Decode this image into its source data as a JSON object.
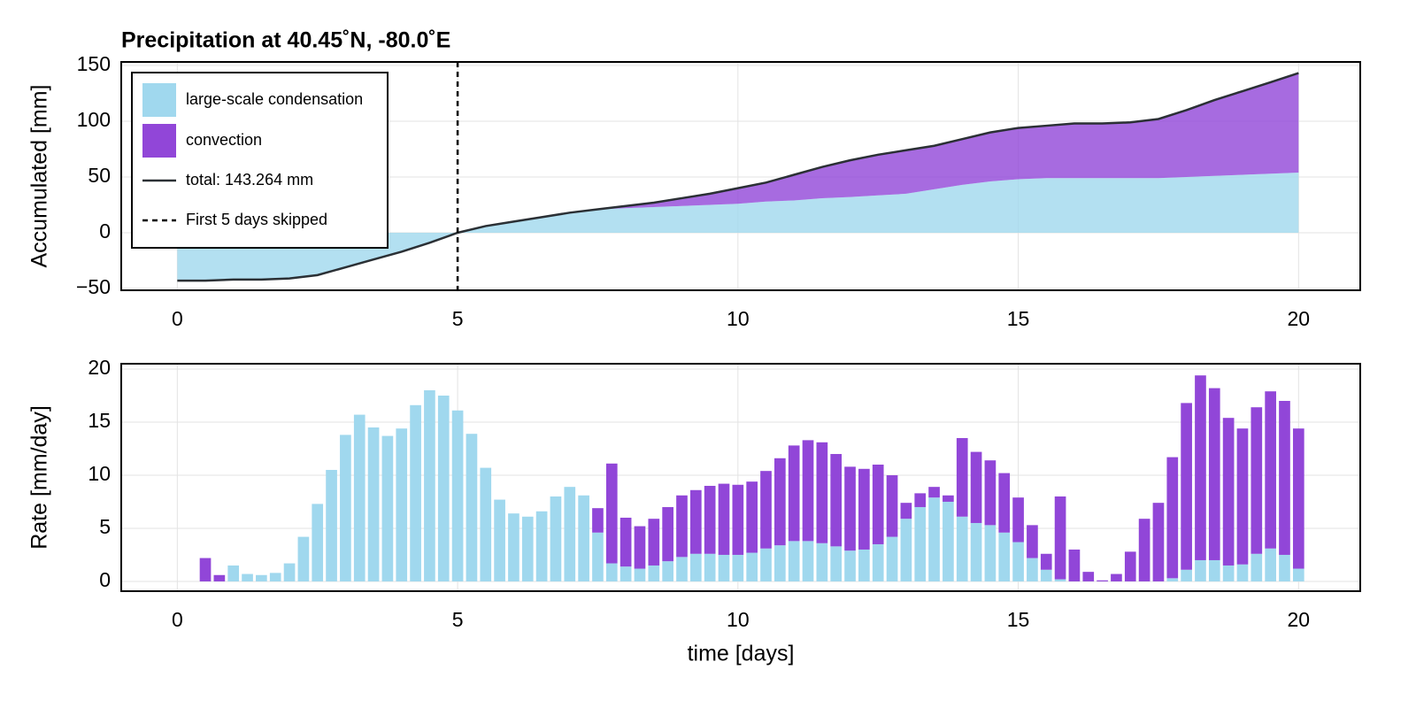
{
  "chart_data": [
    {
      "type": "area",
      "title": "Precipitation at 40.45˚N, -80.0˚E",
      "ylabel": "Accumulated [mm]",
      "x": [
        0,
        0.5,
        1,
        1.5,
        2,
        2.5,
        3,
        3.5,
        4,
        4.5,
        5,
        5.5,
        6,
        6.5,
        7,
        7.5,
        8,
        8.5,
        9,
        9.5,
        10,
        10.5,
        11,
        11.5,
        12,
        12.5,
        13,
        13.5,
        14,
        14.5,
        15,
        15.5,
        16,
        16.5,
        17,
        17.5,
        18,
        18.5,
        19,
        19.5,
        20
      ],
      "series": [
        {
          "name": "large-scale condensation",
          "color": "#a0d8ee",
          "values": [
            -43,
            -43,
            -42,
            -42,
            -41,
            -38,
            -31,
            -24,
            -17,
            -9,
            0,
            6,
            10,
            14,
            18,
            21,
            22,
            23,
            24,
            25,
            26,
            28,
            29,
            31,
            32,
            33.5,
            35,
            39,
            43,
            46,
            48,
            49,
            49,
            49,
            49,
            49,
            50,
            51,
            52,
            53,
            54
          ]
        },
        {
          "name": "convection",
          "color": "#9146d8",
          "values": [
            0,
            0,
            0,
            0,
            0,
            0,
            0,
            0,
            0,
            0,
            0,
            0,
            0,
            0,
            0,
            0,
            2,
            4,
            7,
            10,
            14,
            17,
            23,
            28,
            33,
            36.5,
            39,
            39,
            41,
            44,
            46,
            47,
            49,
            49,
            50,
            53,
            60,
            68,
            75,
            82,
            89.3
          ]
        },
        {
          "name": "total: 143.264 mm",
          "type": "line",
          "color": "#2b3035",
          "values": [
            -43,
            -43,
            -42,
            -42,
            -41,
            -38,
            -31,
            -24,
            -17,
            -9,
            0,
            6,
            10,
            14,
            18,
            21,
            24,
            27,
            31,
            35,
            40,
            45,
            52,
            59,
            65,
            70,
            74,
            78,
            84,
            90,
            94,
            96,
            98,
            98,
            99,
            102,
            110,
            119,
            127,
            135,
            143.264
          ]
        }
      ],
      "vline": {
        "x": 5,
        "label": "First 5 days skipped"
      },
      "xlim": [
        -1,
        21.1
      ],
      "ylim": [
        -51.6,
        153.2
      ],
      "xticks": [
        0,
        5,
        10,
        15,
        20
      ],
      "yticks": [
        {
          "value": -50,
          "label": "−50"
        },
        0,
        50,
        100,
        150
      ],
      "grid": true,
      "legend": "top-left"
    },
    {
      "type": "bar",
      "ylabel": "Rate [mm/day]",
      "xlabel": "time [days]",
      "x": [
        0,
        0.25,
        0.5,
        0.75,
        1,
        1.25,
        1.5,
        1.75,
        2,
        2.25,
        2.5,
        2.75,
        3,
        3.25,
        3.5,
        3.75,
        4,
        4.25,
        4.5,
        4.75,
        5,
        5.25,
        5.5,
        5.75,
        6,
        6.25,
        6.5,
        6.75,
        7,
        7.25,
        7.5,
        7.75,
        8,
        8.25,
        8.5,
        8.75,
        9,
        9.25,
        9.5,
        9.75,
        10,
        10.25,
        10.5,
        10.75,
        11,
        11.25,
        11.5,
        11.75,
        12,
        12.25,
        12.5,
        12.75,
        13,
        13.25,
        13.5,
        13.75,
        14,
        14.25,
        14.5,
        14.75,
        15,
        15.25,
        15.5,
        15.75,
        16,
        16.25,
        16.5,
        16.75,
        17,
        17.25,
        17.5,
        17.75,
        18,
        18.25,
        18.5,
        18.75,
        19,
        19.25,
        19.5,
        19.75,
        20
      ],
      "series": [
        {
          "name": "large-scale condensation",
          "color": "#a0d8ee",
          "values": [
            0,
            0,
            0,
            0,
            1.5,
            0.7,
            0.6,
            0.8,
            1.7,
            4.2,
            7.3,
            10.5,
            13.8,
            15.7,
            14.5,
            13.7,
            14.4,
            16.6,
            18.0,
            17.5,
            16.1,
            13.9,
            10.7,
            7.7,
            6.4,
            6.1,
            6.6,
            8.0,
            8.9,
            8.1,
            4.6,
            1.7,
            1.4,
            1.2,
            1.5,
            1.9,
            2.3,
            2.6,
            2.6,
            2.5,
            2.5,
            2.7,
            3.1,
            3.4,
            3.8,
            3.8,
            3.6,
            3.3,
            2.9,
            3.0,
            3.5,
            4.2,
            5.9,
            7.0,
            7.9,
            7.5,
            6.1,
            5.5,
            5.3,
            4.6,
            3.7,
            2.2,
            1.1,
            0.2,
            0,
            0,
            0,
            0,
            0,
            0,
            0,
            0.3,
            1.1,
            2.0,
            2.0,
            1.5,
            1.6,
            2.6,
            3.1,
            2.5,
            1.2
          ]
        },
        {
          "name": "convection",
          "color": "#9146d8",
          "values": [
            0,
            0,
            2.2,
            0.6,
            0,
            0,
            0,
            0,
            0,
            0,
            0,
            0,
            0,
            0,
            0,
            0,
            0,
            0,
            0,
            0,
            0,
            0,
            0,
            0,
            0,
            0,
            0,
            0,
            0,
            0,
            2.3,
            9.4,
            4.6,
            4.0,
            4.4,
            5.1,
            5.8,
            6.0,
            6.4,
            6.7,
            6.6,
            6.7,
            7.3,
            8.2,
            9.0,
            9.5,
            9.5,
            8.7,
            7.9,
            7.6,
            7.5,
            5.8,
            1.5,
            1.3,
            1.0,
            0.6,
            7.4,
            6.7,
            6.1,
            5.6,
            4.2,
            3.1,
            1.5,
            7.8,
            3.0,
            0.9,
            0.1,
            0.7,
            2.8,
            5.9,
            7.4,
            11.4,
            15.7,
            17.4,
            16.2,
            13.9,
            12.8,
            13.8,
            14.8,
            14.5,
            13.2
          ]
        }
      ],
      "xlim": [
        -1,
        21.1
      ],
      "ylim": [
        -0.92,
        20.5
      ],
      "xticks": [
        0,
        5,
        10,
        15,
        20
      ],
      "yticks": [
        0,
        5,
        10,
        15,
        20
      ],
      "grid": true
    }
  ]
}
